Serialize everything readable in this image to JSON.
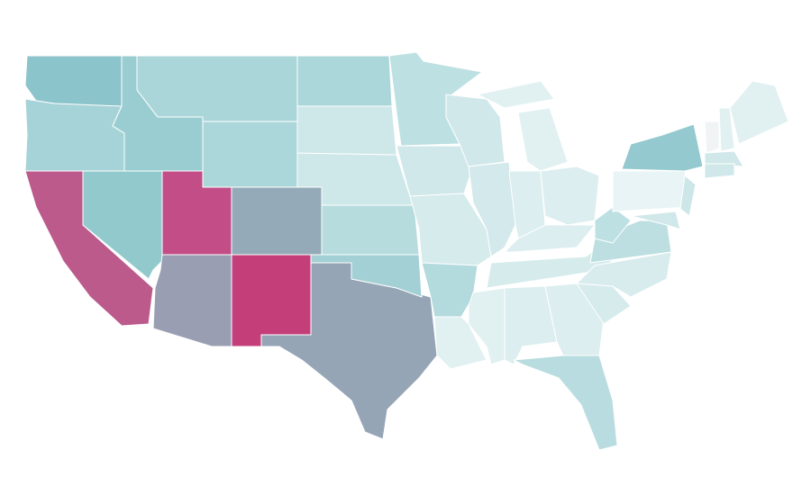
{
  "map": {
    "fills": [
      "#8cc4cc",
      "#a6d3d7",
      "#bb5a8b",
      "#92c9cd",
      "#99cdd1",
      "#abd6d9",
      "#acd7da",
      "#c24d87",
      "#94aab8",
      "#9a9eb3",
      "#c43f7a",
      "#96a5b6",
      "#a2d0d5",
      "#b7dcde",
      "#cee7e9",
      "#cee7e9",
      "#acd7da",
      "#bde0e2",
      "#d1e8ea",
      "#d6ebec",
      "#b3dadd",
      "#e1f0f1",
      "#d1e8ea",
      "#d3e9eb",
      "#e1f0f1",
      "#e1f0f1",
      "#dceeef",
      "#dceeef",
      "#dceeef",
      "#d6ebec",
      "#e1f0f1",
      "#dceeef",
      "#dceeef",
      "#b8dcdf",
      "#d6ebec",
      "#d8ecee",
      "#bddfe1",
      "#bde0e2",
      "#e8f4f5",
      "#93c9cf",
      "#cde6e8",
      "#d1e8ea",
      "#f0f4f5",
      "#e1f0f1",
      "#e1f0f1",
      "#d1e8ea",
      "#d1e8ea"
    ]
  }
}
